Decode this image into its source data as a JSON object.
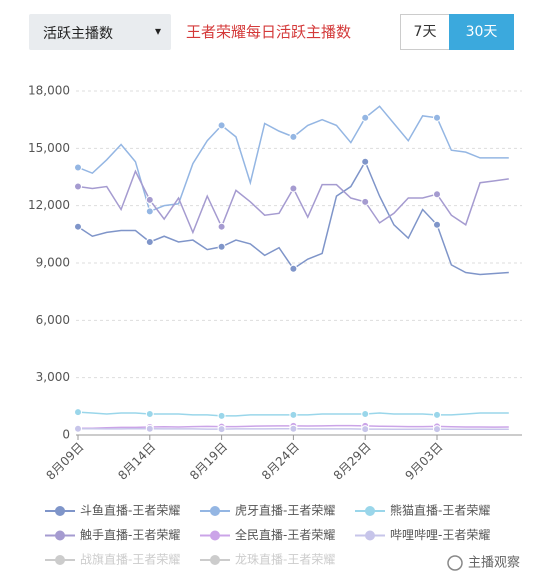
{
  "ui": {
    "dropdown": "活跃主播数",
    "dropdown_arrow": "▾",
    "buttons": [
      "7天",
      "30天"
    ],
    "active_button": 1,
    "watermark": "主播观察"
  },
  "chart_data": {
    "type": "line",
    "title": "王者荣耀每日活跃主播数",
    "categories": [
      "8月09日",
      null,
      null,
      null,
      null,
      "8月14日",
      null,
      null,
      null,
      null,
      "8月19日",
      null,
      null,
      null,
      null,
      "8月24日",
      null,
      null,
      null,
      null,
      "8月29日",
      null,
      null,
      null,
      null,
      "9月03日",
      null,
      null,
      null,
      null,
      null
    ],
    "ylim": [
      0,
      18000
    ],
    "yticks": [
      0,
      {
        "value": 3000,
        "label": "3,000"
      },
      {
        "value": 6000,
        "label": "6,000"
      },
      {
        "value": 9000,
        "label": "9,000"
      },
      {
        "value": 12000,
        "label": "12,000"
      },
      {
        "value": 15000,
        "label": "15,000"
      },
      {
        "value": 18000,
        "label": "18,000"
      }
    ],
    "grid": true,
    "series": [
      {
        "name": "斗鱼直播-王者荣耀",
        "color": "#7f95c9",
        "visible": true,
        "values": [
          10900,
          10400,
          10600,
          10700,
          10700,
          10100,
          10400,
          10100,
          10200,
          9700,
          9850,
          10200,
          10000,
          9400,
          9800,
          8700,
          9200,
          9500,
          12500,
          13000,
          14300,
          12500,
          11000,
          10300,
          11800,
          11000,
          8900,
          8500,
          8400,
          8450,
          8500
        ]
      },
      {
        "name": "虎牙直播-王者荣耀",
        "color": "#94b6e3",
        "visible": true,
        "values": [
          14000,
          13700,
          14400,
          15200,
          14300,
          11700,
          12000,
          12100,
          14200,
          15400,
          16200,
          15600,
          13200,
          16300,
          15900,
          15600,
          16200,
          16500,
          16200,
          15300,
          16600,
          17200,
          16300,
          15400,
          16700,
          16600,
          14900,
          14800,
          14500,
          14500,
          14500
        ]
      },
      {
        "name": "熊猫直播-王者荣耀",
        "color": "#9ad6ea",
        "visible": true,
        "values": [
          1200,
          1150,
          1100,
          1150,
          1150,
          1100,
          1100,
          1100,
          1050,
          1050,
          1000,
          1000,
          1050,
          1050,
          1050,
          1050,
          1050,
          1100,
          1100,
          1100,
          1100,
          1150,
          1100,
          1100,
          1100,
          1050,
          1050,
          1100,
          1150,
          1150,
          1150
        ]
      },
      {
        "name": "触手直播-王者荣耀",
        "color": "#a59bd0",
        "visible": true,
        "values": [
          13000,
          12900,
          13000,
          11800,
          13800,
          12300,
          11300,
          12400,
          10600,
          12500,
          10900,
          12800,
          12200,
          11500,
          11600,
          12900,
          11400,
          13100,
          13100,
          12400,
          12200,
          11100,
          11600,
          12400,
          12400,
          12600,
          11500,
          11000,
          13200,
          13300,
          13400
        ]
      },
      {
        "name": "全民直播-王者荣耀",
        "color": "#cba4e8",
        "visible": true,
        "values": [
          350,
          350,
          380,
          400,
          400,
          420,
          430,
          420,
          440,
          450,
          440,
          440,
          460,
          470,
          480,
          480,
          470,
          480,
          490,
          490,
          480,
          460,
          450,
          440,
          440,
          450,
          430,
          420,
          420,
          410,
          420
        ]
      },
      {
        "name": "哔哩哔哩-王者荣耀",
        "color": "#c7c5ea",
        "visible": true,
        "values": [
          330,
          330,
          320,
          320,
          330,
          330,
          320,
          320,
          320,
          310,
          310,
          320,
          320,
          320,
          330,
          330,
          320,
          320,
          320,
          320,
          310,
          310,
          300,
          300,
          310,
          310,
          300,
          300,
          300,
          300,
          300
        ]
      },
      {
        "name": "战旗直播-王者荣耀",
        "color": "#cccccc",
        "visible": false,
        "values": [
          null,
          null,
          null,
          null,
          null,
          null,
          null,
          null,
          null,
          null,
          null,
          null,
          null,
          null,
          null,
          null,
          null,
          null,
          null,
          null,
          null,
          null,
          null,
          null,
          null,
          null,
          null,
          null,
          null,
          null,
          null
        ]
      },
      {
        "name": "龙珠直播-王者荣耀",
        "color": "#cccccc",
        "visible": false,
        "values": [
          null,
          null,
          null,
          null,
          null,
          null,
          null,
          null,
          null,
          null,
          null,
          null,
          null,
          null,
          null,
          null,
          null,
          null,
          null,
          null,
          null,
          null,
          null,
          null,
          null,
          null,
          null,
          null,
          null,
          null,
          null
        ]
      }
    ]
  }
}
